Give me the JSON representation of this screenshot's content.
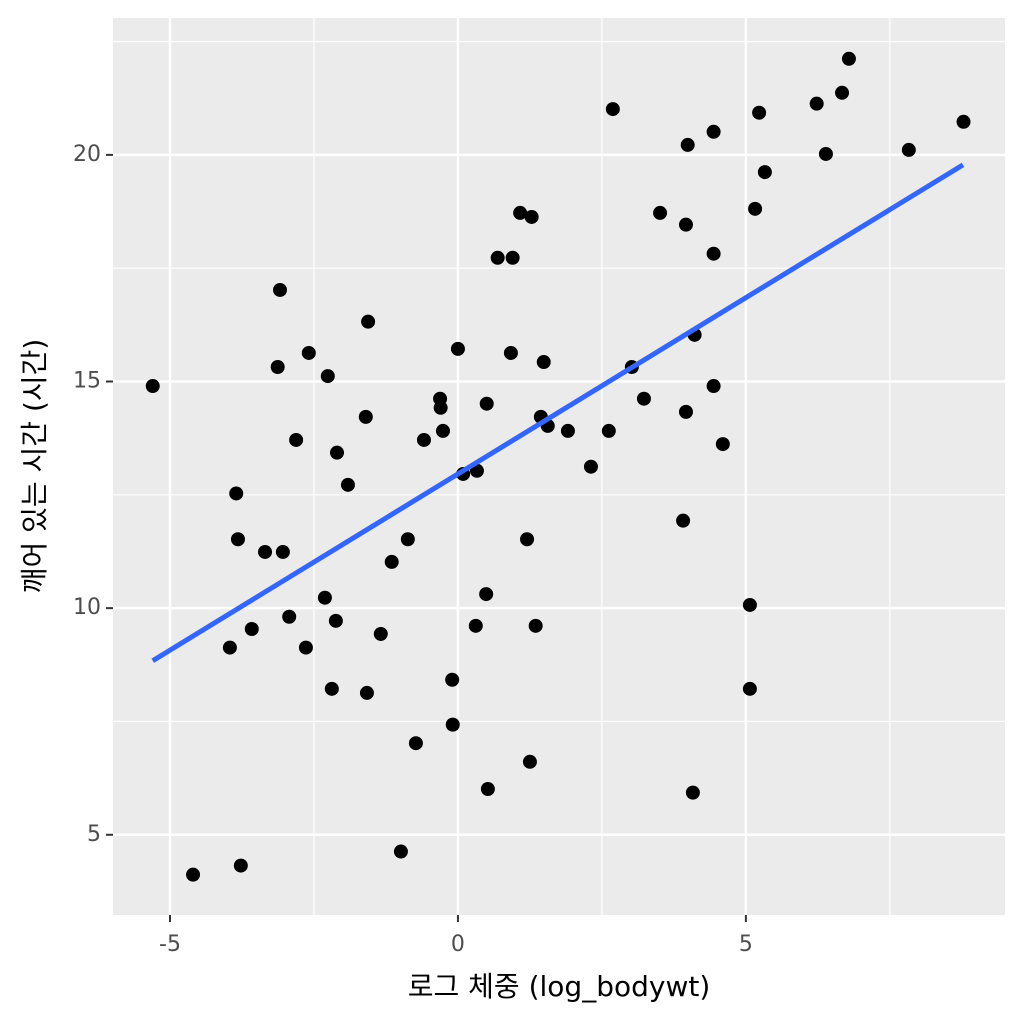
{
  "chart_data": {
    "type": "scatter",
    "x_label": "로그 체중 (log_bodywt)",
    "y_label": "깨어 있는 시간 (시간)",
    "xlim": [
      -5.99,
      9.5
    ],
    "ylim": [
      3.23,
      23.02
    ],
    "xticks": [
      -5,
      0,
      5
    ],
    "yticks": [
      5,
      10,
      15,
      20
    ],
    "x_minor_grid": [
      -2.5,
      2.5,
      7.5
    ],
    "y_minor_grid": [
      7.5,
      12.5,
      17.5,
      22.5
    ],
    "grid": true,
    "color": "#000000",
    "x": [
      -5.3,
      -4.6,
      -3.77,
      -3.96,
      -3.85,
      -3.82,
      -3.58,
      -3.35,
      -3.04,
      -3.13,
      -3.09,
      -2.93,
      -2.81,
      -2.64,
      -2.59,
      -2.31,
      -2.26,
      -2.19,
      -2.12,
      -2.1,
      -1.91,
      -1.6,
      -1.56,
      -1.58,
      -1.34,
      -1.15,
      -0.99,
      -0.87,
      -0.73,
      -0.59,
      -0.31,
      -0.3,
      -0.26,
      -0.1,
      -0.09,
      0.0,
      0.09,
      0.33,
      0.31,
      0.5,
      0.49,
      0.52,
      0.69,
      0.95,
      0.92,
      1.08,
      1.28,
      1.2,
      1.25,
      1.35,
      1.44,
      1.49,
      1.56,
      1.91,
      2.31,
      2.62,
      2.69,
      3.02,
      3.23,
      3.51,
      3.91,
      3.96,
      3.96,
      3.99,
      4.11,
      4.08,
      4.44,
      4.44,
      4.44,
      4.6,
      5.07,
      5.07,
      5.16,
      5.23,
      5.33,
      6.23,
      6.39,
      6.67,
      6.79,
      7.83,
      8.78
    ],
    "values": [
      14.9,
      4.12,
      4.32,
      9.13,
      12.53,
      11.52,
      9.54,
      11.24,
      11.24,
      15.32,
      17.02,
      9.81,
      13.71,
      9.13,
      15.63,
      10.23,
      15.12,
      8.22,
      9.72,
      13.43,
      12.72,
      14.22,
      16.32,
      8.13,
      9.43,
      11.02,
      4.63,
      11.52,
      7.02,
      13.71,
      14.62,
      14.42,
      13.91,
      8.42,
      7.43,
      15.72,
      12.96,
      13.03,
      9.61,
      14.51,
      10.31,
      6.01,
      17.73,
      17.73,
      15.63,
      18.72,
      18.63,
      11.52,
      6.61,
      9.61,
      14.22,
      15.43,
      14.02,
      13.91,
      13.12,
      13.91,
      21.01,
      15.32,
      14.62,
      18.72,
      11.93,
      14.33,
      18.46,
      20.22,
      16.03,
      5.93,
      17.82,
      14.9,
      20.51,
      13.62,
      10.07,
      8.22,
      18.81,
      20.93,
      19.62,
      21.13,
      20.02,
      21.37,
      22.12,
      20.11,
      20.73
    ],
    "fit": {
      "x": [
        -5.3,
        8.77
      ],
      "values": [
        8.84,
        19.78
      ],
      "color": "#3366ff"
    }
  }
}
